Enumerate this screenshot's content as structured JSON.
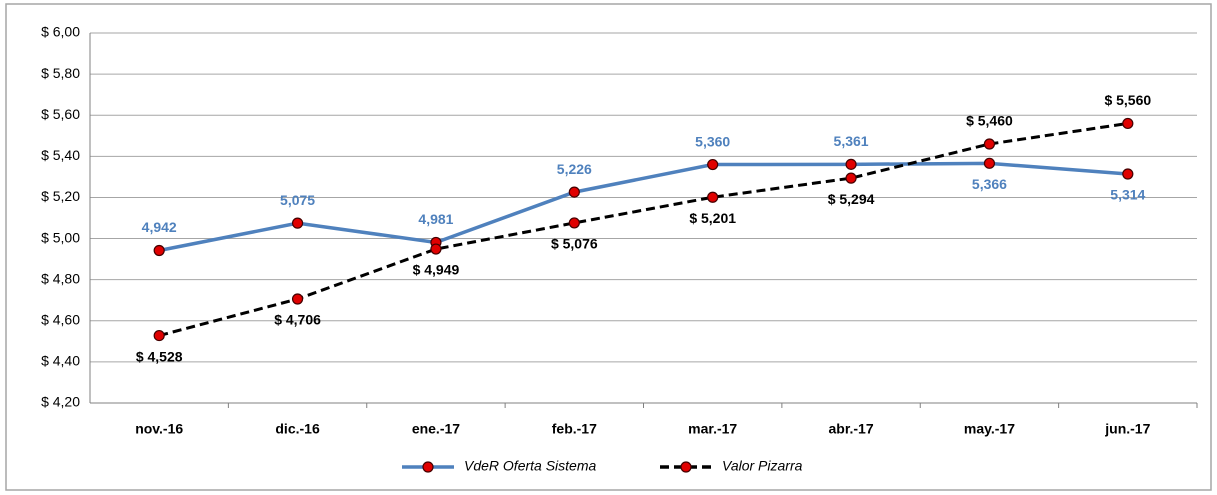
{
  "chart_data": {
    "type": "line",
    "categories": [
      "nov.-16",
      "dic.-16",
      "ene.-17",
      "feb.-17",
      "mar.-17",
      "abr.-17",
      "may.-17",
      "jun.-17"
    ],
    "series": [
      {
        "name": "VdeR Oferta Sistema",
        "color": "#4f81bd",
        "dashed": false,
        "values": [
          4.942,
          5.075,
          4.981,
          5.226,
          5.36,
          5.361,
          5.366,
          5.314
        ],
        "value_labels": [
          "4,942",
          "5,075",
          "4,981",
          "5,226",
          "5,360",
          "5,361",
          "5,366",
          "5,314"
        ]
      },
      {
        "name": "Valor Pizarra",
        "color": "#000000",
        "dashed": true,
        "values": [
          4.528,
          4.706,
          4.949,
          5.076,
          5.201,
          5.294,
          5.46,
          5.56
        ],
        "value_labels": [
          "$ 4,528",
          "$ 4,706",
          "$ 4,949",
          "$ 5,076",
          "$ 5,201",
          "$ 5,294",
          "$ 5,460",
          "$ 5,560"
        ]
      }
    ],
    "marker_color": "#e00000",
    "ylim": [
      4.2,
      6.0
    ],
    "yticks": [
      {
        "value": 4.2,
        "label": "$ 4,20"
      },
      {
        "value": 4.4,
        "label": "$ 4,40"
      },
      {
        "value": 4.6,
        "label": "$ 4,60"
      },
      {
        "value": 4.8,
        "label": "$ 4,80"
      },
      {
        "value": 5.0,
        "label": "$ 5,00"
      },
      {
        "value": 5.2,
        "label": "$ 5,20"
      },
      {
        "value": 5.4,
        "label": "$ 5,40"
      },
      {
        "value": 5.6,
        "label": "$ 5,60"
      },
      {
        "value": 5.8,
        "label": "$ 5,80"
      },
      {
        "value": 6.0,
        "label": "$ 6,00"
      }
    ],
    "grid": true,
    "legend": "bottom"
  }
}
